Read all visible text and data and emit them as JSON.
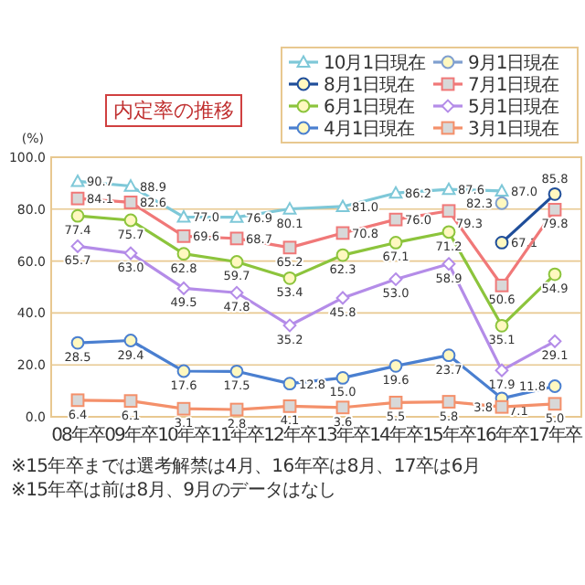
{
  "chart_data": {
    "type": "line",
    "title": "内定率の推移",
    "ylabel": "(%)",
    "categories": [
      "08年卒",
      "09年卒",
      "10年卒",
      "11年卒",
      "12年卒",
      "13年卒",
      "14年卒",
      "15年卒",
      "16年卒",
      "17年卒"
    ],
    "series": [
      {
        "name": "10月1日現在",
        "color": "#7ec8d8",
        "marker": "triangle",
        "values": [
          90.7,
          88.9,
          77.0,
          76.9,
          80.1,
          81.0,
          86.2,
          87.6,
          87.0,
          null
        ],
        "value_labels": [
          "90.7",
          "88.9",
          "77.0",
          "76.9",
          "80.1",
          "81.0",
          "86.2",
          "87.6",
          "87.0",
          null
        ]
      },
      {
        "name": "9月1日現在",
        "color": "#7f9fcf",
        "marker": "circle",
        "values": [
          null,
          null,
          null,
          null,
          null,
          null,
          null,
          null,
          82.3,
          null
        ],
        "value_labels": [
          null,
          null,
          null,
          null,
          null,
          null,
          null,
          null,
          "82.3",
          null
        ]
      },
      {
        "name": "8月1日現在",
        "color": "#1f4e9a",
        "marker": "circle",
        "values": [
          null,
          null,
          null,
          null,
          null,
          null,
          null,
          null,
          67.1,
          85.8
        ],
        "value_labels": [
          null,
          null,
          null,
          null,
          null,
          null,
          null,
          null,
          "67.1",
          "85.8"
        ]
      },
      {
        "name": "7月1日現在",
        "color": "#f07878",
        "marker": "square",
        "values": [
          84.1,
          82.6,
          69.6,
          68.7,
          65.2,
          70.8,
          76.0,
          79.3,
          50.6,
          79.8
        ],
        "value_labels": [
          "84.1",
          "82.6",
          "69.6",
          "68.7",
          "65.2",
          "70.8",
          "76.0",
          "79.3",
          "50.6",
          "79.8"
        ]
      },
      {
        "name": "6月1日現在",
        "color": "#8cc43c",
        "marker": "circle",
        "values": [
          77.4,
          75.7,
          62.8,
          59.7,
          53.4,
          62.3,
          67.1,
          71.2,
          35.1,
          54.9
        ],
        "value_labels": [
          "77.4",
          "75.7",
          "62.8",
          "59.7",
          "53.4",
          "62.3",
          "67.1",
          "71.2",
          "35.1",
          "54.9"
        ]
      },
      {
        "name": "5月1日現在",
        "color": "#b48ce8",
        "marker": "diamond",
        "values": [
          65.7,
          63.0,
          49.5,
          47.8,
          35.2,
          45.8,
          53.0,
          58.9,
          17.9,
          29.1
        ],
        "value_labels": [
          "65.7",
          "63.0",
          "49.5",
          "47.8",
          "35.2",
          "45.8",
          "53.0",
          "58.9",
          "17.9",
          "29.1"
        ]
      },
      {
        "name": "4月1日現在",
        "color": "#4a7fd0",
        "marker": "circle",
        "values": [
          28.5,
          29.4,
          17.6,
          17.5,
          12.8,
          15.0,
          19.6,
          23.7,
          7.1,
          11.8
        ],
        "value_labels": [
          "28.5",
          "29.4",
          "17.6",
          "17.5",
          "12.8",
          "15.0",
          "19.6",
          "23.7",
          "7.1",
          "11.8"
        ]
      },
      {
        "name": "3月1日現在",
        "color": "#f4906a",
        "marker": "square",
        "values": [
          6.4,
          6.1,
          3.1,
          2.8,
          4.1,
          3.6,
          5.5,
          5.8,
          3.8,
          5.0
        ],
        "value_labels": [
          "6.4",
          "6.1",
          "3.1",
          "2.8",
          "4.1",
          "3.6",
          "5.5",
          "5.8",
          "3.8",
          "5.0"
        ]
      }
    ],
    "ylim": [
      0,
      100
    ],
    "yticks": [
      {
        "value": 0,
        "label": "0.0"
      },
      {
        "value": 20,
        "label": "20.0"
      },
      {
        "value": 40,
        "label": "40.0"
      },
      {
        "value": 60,
        "label": "60.0"
      },
      {
        "value": 80,
        "label": "80.0"
      },
      {
        "value": 100,
        "label": "100.0"
      }
    ],
    "grid": "y",
    "legend": "top right",
    "annotations": [
      "※15年卒までは選考解禁は4月、16年卒は8月、17卒は6月",
      "※15年卒は前は8月、9月のデータはなし"
    ]
  }
}
